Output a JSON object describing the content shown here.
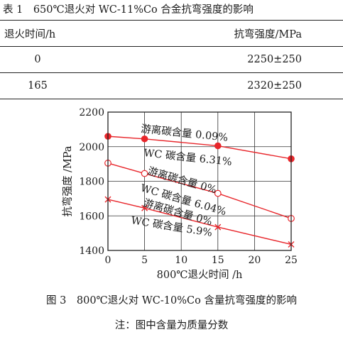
{
  "table": {
    "caption": "表 1　650℃退火对 WC-11%Co 合金抗弯强度的影响",
    "headers": [
      "退火时间/h",
      "抗弯强度/MPa"
    ],
    "rows": [
      [
        "0",
        "2250±250"
      ],
      [
        "165",
        "2320±250"
      ]
    ]
  },
  "figure": {
    "caption": "图 3　800℃退火对 WC-10%Co 含量抗弯强度的影响",
    "note": "注：图中含量为质量分数"
  },
  "chart_data": {
    "type": "line",
    "title": "",
    "xlabel": "800℃退火时间 /h",
    "ylabel": "抗弯强度 /MPa",
    "xlim": [
      0,
      25
    ],
    "ylim": [
      1400,
      2200
    ],
    "xticks": [
      0,
      5,
      10,
      15,
      20,
      25
    ],
    "yticks": [
      1400,
      1600,
      1800,
      2000,
      2200
    ],
    "grid": true,
    "series": [
      {
        "label": "游离碳含量 0.09%",
        "marker": "filled-circle",
        "color": "#e8262b",
        "points": [
          [
            0,
            2060
          ],
          [
            5,
            2045
          ],
          [
            15,
            2005
          ],
          [
            25,
            1930
          ]
        ]
      },
      {
        "label": "WC 碳含量 6.31%",
        "marker": "none",
        "color": "#e8262b",
        "points": []
      },
      {
        "label": "游离碳含量 0%",
        "marker": "open-circle",
        "color": "#e8262b",
        "points": [
          [
            0,
            1905
          ],
          [
            5,
            1845
          ],
          [
            15,
            1730
          ],
          [
            25,
            1585
          ]
        ]
      },
      {
        "label": "WC 碳含量 6.04%",
        "marker": "none",
        "color": "#e8262b",
        "points": []
      },
      {
        "label": "游离碳含量 0%",
        "marker": "cross",
        "color": "#e8262b",
        "points": [
          [
            0,
            1695
          ],
          [
            5,
            1645
          ],
          [
            15,
            1535
          ],
          [
            25,
            1435
          ]
        ]
      },
      {
        "label": "WC 碳含量 5.9%",
        "marker": "none",
        "color": "#e8262b",
        "points": []
      }
    ]
  }
}
